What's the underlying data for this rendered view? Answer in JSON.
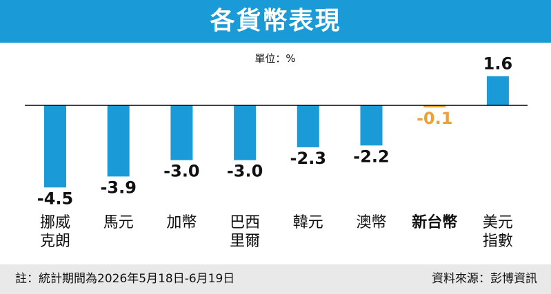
{
  "title": "各貨幣表現",
  "footer": {
    "note": "註：統計期間為2026年5月18日-6月19日",
    "source": "資料來源：彭博資訊"
  },
  "colors": {
    "header": "#1a9ad7",
    "bar": "#1a9ad7",
    "highlight": "#f0a033",
    "axis": "#000000",
    "footer_bg": "#e9e9e9"
  },
  "chart_data": {
    "type": "bar",
    "unit_label": "單位：%",
    "categories": [
      [
        "挪威",
        "克朗"
      ],
      [
        "馬元"
      ],
      [
        "加幣"
      ],
      [
        "巴西",
        "里爾"
      ],
      [
        "韓元"
      ],
      [
        "澳幣"
      ],
      [
        "新台幣"
      ],
      [
        "美元",
        "指數"
      ]
    ],
    "values": [
      -4.5,
      -3.9,
      -3.0,
      -3.0,
      -2.3,
      -2.2,
      -0.1,
      1.6
    ],
    "value_labels": [
      "-4.5",
      "-3.9",
      "-3.0",
      "-3.0",
      "-2.3",
      "-2.2",
      "-0.1",
      "1.6"
    ],
    "highlight_index": 6,
    "ylim": [
      -4.5,
      1.6
    ],
    "grid": false,
    "legend": "none"
  }
}
